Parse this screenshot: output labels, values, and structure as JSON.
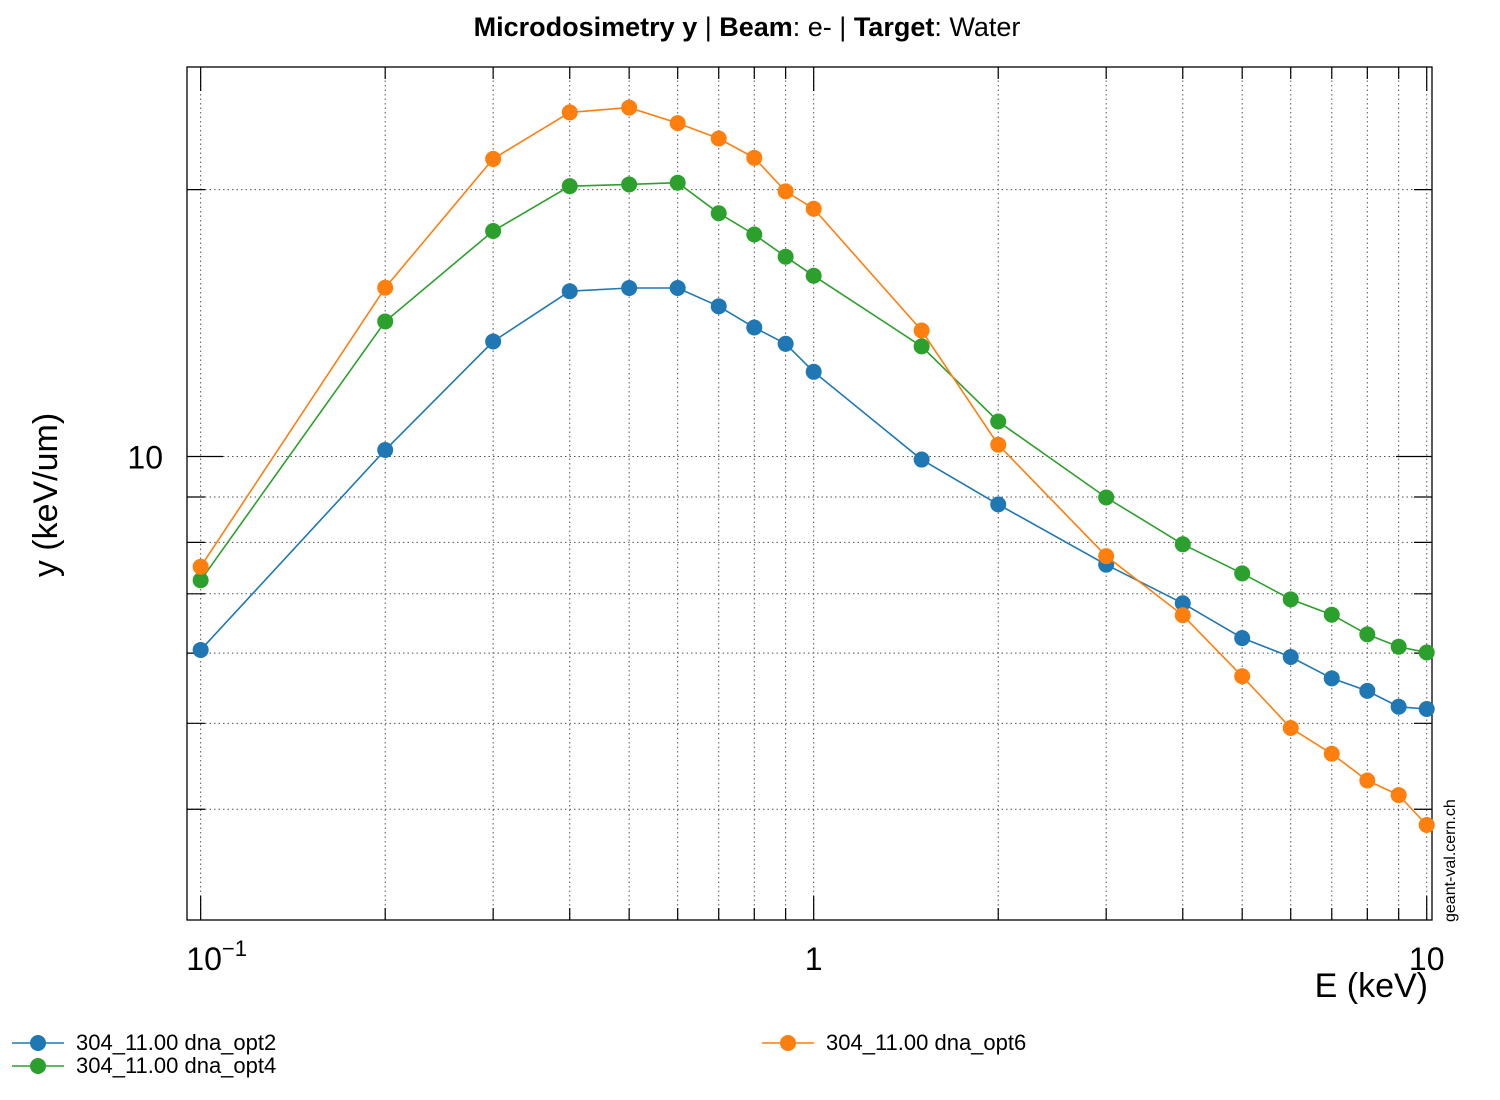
{
  "chart_data": {
    "type": "line",
    "title_parts": [
      {
        "text": "Microdosimetry y  ",
        "bold": true
      },
      {
        "text": "| ",
        "bold": false
      },
      {
        "text": "Beam",
        "bold": true
      },
      {
        "text": ": e- | ",
        "bold": false
      },
      {
        "text": "Target",
        "bold": true
      },
      {
        "text": ": Water",
        "bold": false
      }
    ],
    "xlabel": "E (keV)",
    "ylabel": "y (keV/um)",
    "x_scale": "log",
    "y_scale": "log",
    "xlim": [
      0.095,
      10.2
    ],
    "ylim": [
      3.0,
      27.5
    ],
    "x_tick_labels": [
      {
        "value": 0.1,
        "base": "10",
        "exp": "−1"
      },
      {
        "value": 1,
        "base": "1",
        "exp": ""
      },
      {
        "value": 10,
        "base": "10",
        "exp": ""
      }
    ],
    "y_tick_labels": [
      {
        "value": 10,
        "text": "10"
      }
    ],
    "grid": true,
    "watermark": "geant-val.cern.ch",
    "legend_position": "bottom",
    "x": [
      0.1,
      0.2,
      0.3,
      0.4,
      0.5,
      0.6,
      0.7,
      0.8,
      0.9,
      1.0,
      1.5,
      2.0,
      3.0,
      4.0,
      5.0,
      6.0,
      7.0,
      8.0,
      9.0,
      10.0
    ],
    "series": [
      {
        "name": "304_11.00 dna_opt2",
        "color": "#1f77b4",
        "values": [
          6.05,
          10.17,
          13.48,
          15.36,
          15.49,
          15.49,
          14.77,
          13.98,
          13.4,
          12.46,
          9.92,
          8.83,
          7.55,
          6.83,
          6.24,
          5.94,
          5.62,
          5.44,
          5.22,
          5.19
        ]
      },
      {
        "name": "304_11.00 dna_opt4",
        "color": "#2ca02c",
        "values": [
          7.25,
          14.2,
          17.96,
          20.18,
          20.27,
          20.36,
          18.81,
          17.8,
          16.8,
          15.99,
          13.31,
          10.95,
          8.99,
          7.96,
          7.38,
          6.9,
          6.63,
          6.3,
          6.1,
          6.01
        ]
      },
      {
        "name": "304_11.00 dna_opt6",
        "color": "#ff7f0e",
        "values": [
          7.51,
          15.5,
          21.66,
          24.44,
          24.75,
          23.77,
          22.84,
          21.72,
          19.91,
          19.03,
          13.87,
          10.31,
          7.72,
          6.62,
          5.65,
          4.94,
          4.62,
          4.31,
          4.15,
          3.84
        ]
      }
    ]
  }
}
